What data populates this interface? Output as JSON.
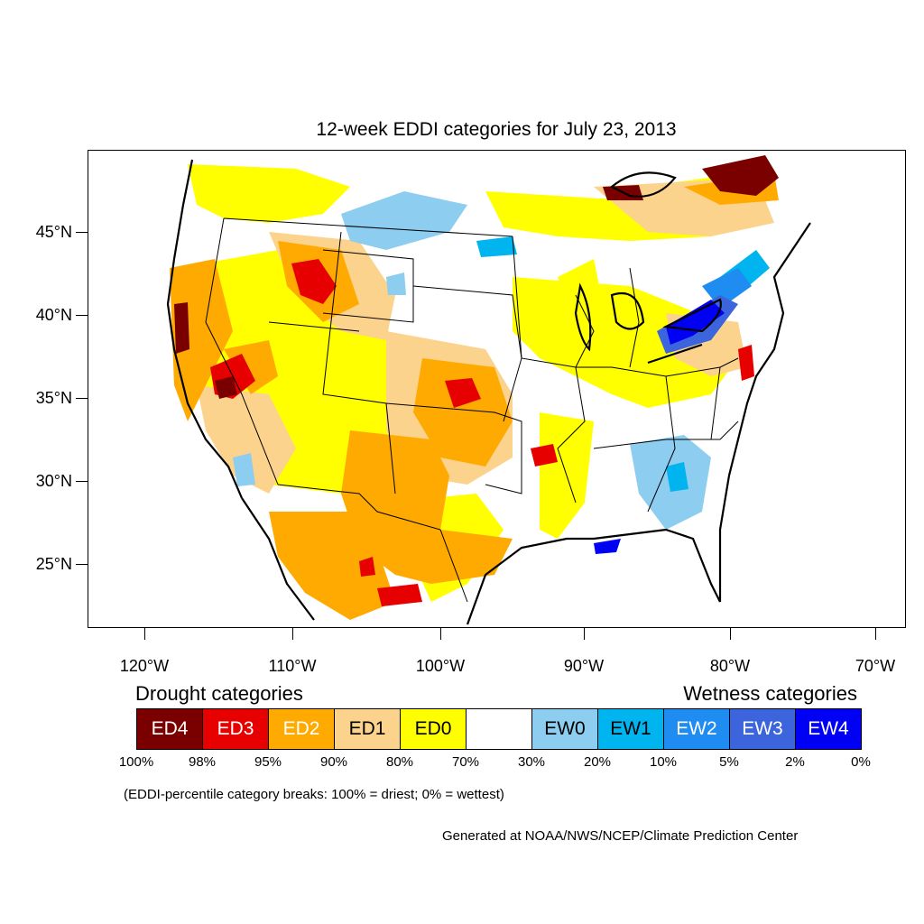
{
  "title": "12-week EDDI categories for July 23, 2013",
  "latitude_labels": [
    "45°N",
    "40°N",
    "35°N",
    "30°N",
    "25°N"
  ],
  "longitude_labels": [
    "120°W",
    "110°W",
    "100°W",
    "90°W",
    "80°W",
    "70°W"
  ],
  "legend": {
    "drought_heading": "Drought categories",
    "wetness_heading": "Wetness categories",
    "categories": [
      {
        "label": "ED4",
        "color": "#7a0000",
        "text_color": "#ffffff"
      },
      {
        "label": "ED3",
        "color": "#e60000",
        "text_color": "#ffffff"
      },
      {
        "label": "ED2",
        "color": "#ffaa00",
        "text_color": "#ffffff"
      },
      {
        "label": "ED1",
        "color": "#fcd38c",
        "text_color": "#000000"
      },
      {
        "label": "ED0",
        "color": "#ffff00",
        "text_color": "#000000"
      },
      {
        "label": "",
        "color": "#ffffff",
        "text_color": "#000000"
      },
      {
        "label": "EW0",
        "color": "#8ccdf0",
        "text_color": "#000000"
      },
      {
        "label": "EW1",
        "color": "#00b4f0",
        "text_color": "#000000"
      },
      {
        "label": "EW2",
        "color": "#1e8cf0",
        "text_color": "#ffffff"
      },
      {
        "label": "EW3",
        "color": "#3c64dc",
        "text_color": "#ffffff"
      },
      {
        "label": "EW4",
        "color": "#0000f5",
        "text_color": "#ffffff"
      }
    ],
    "breaks": [
      "100%",
      "98%",
      "95%",
      "90%",
      "80%",
      "70%",
      "30%",
      "20%",
      "10%",
      "5%",
      "2%",
      "0%"
    ]
  },
  "note": "(EDDI-percentile category breaks: 100% = driest; 0% = wettest)",
  "credit": "Generated at NOAA/NWS/NCEP/Climate Prediction Center"
}
